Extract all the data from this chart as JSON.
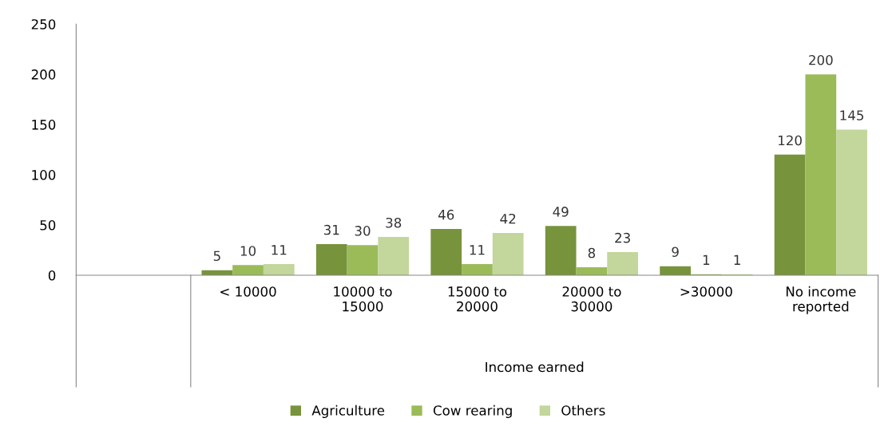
{
  "chart_data": {
    "type": "bar",
    "xlabel": "Income earned",
    "categories": [
      null,
      "< 10000",
      "10000 to\n15000",
      "15000 to\n20000",
      "20000 to\n30000",
      ">30000",
      "No income\nreported"
    ],
    "series": [
      {
        "name": "Agriculture",
        "color": "#77933c",
        "values": [
          null,
          5,
          31,
          46,
          49,
          9,
          120
        ]
      },
      {
        "name": "Cow rearing",
        "color": "#9bbb59",
        "values": [
          null,
          10,
          30,
          11,
          8,
          1,
          200
        ]
      },
      {
        "name": "Others",
        "color": "#c3d69b",
        "values": [
          null,
          11,
          38,
          42,
          23,
          1,
          145
        ]
      }
    ],
    "ylim": [
      0,
      250
    ],
    "yticks": [
      0,
      50,
      100,
      150,
      200,
      250
    ],
    "grid": false,
    "legend": "bottom",
    "data_labels": true
  }
}
